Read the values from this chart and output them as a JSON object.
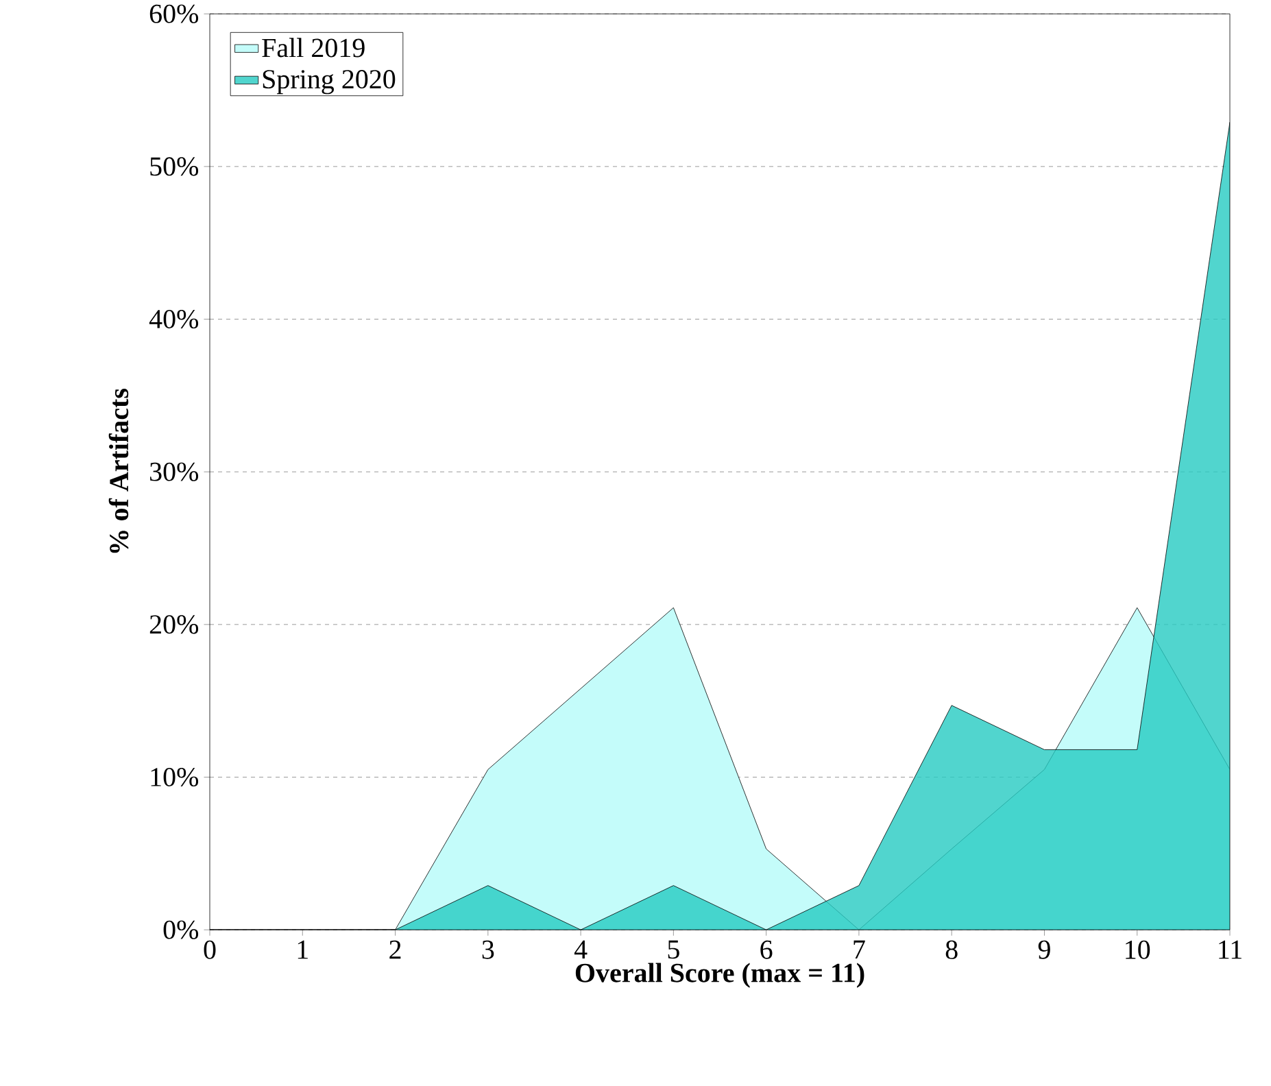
{
  "chart_data": {
    "type": "area",
    "xlabel": "Overall Score (max = 11)",
    "ylabel": "% of Artifacts",
    "x": [
      0,
      1,
      2,
      3,
      4,
      5,
      6,
      7,
      8,
      9,
      10,
      11
    ],
    "series": [
      {
        "name": "Fall 2019",
        "color": "#c4fcfa",
        "values": [
          0,
          0,
          0,
          10.5,
          15.8,
          21.1,
          5.3,
          0,
          5.3,
          10.5,
          21.1,
          10.5
        ]
      },
      {
        "name": "Spring 2020",
        "color": "#26cbc2",
        "values": [
          0,
          0,
          0,
          2.9,
          0,
          2.9,
          0,
          2.9,
          14.7,
          11.8,
          11.8,
          52.9
        ]
      }
    ],
    "xlim": [
      0,
      11
    ],
    "xticks": [
      0,
      1,
      2,
      3,
      4,
      5,
      6,
      7,
      8,
      9,
      10,
      11
    ],
    "ylim": [
      0,
      60
    ],
    "yticks": [
      {
        "value": 0,
        "label": "0%"
      },
      {
        "value": 10,
        "label": "10%"
      },
      {
        "value": 20,
        "label": "20%"
      },
      {
        "value": 30,
        "label": "30%"
      },
      {
        "value": 40,
        "label": "40%"
      },
      {
        "value": 50,
        "label": "50%"
      },
      {
        "value": 60,
        "label": "60%"
      }
    ],
    "grid": "y",
    "legend": "top left"
  }
}
